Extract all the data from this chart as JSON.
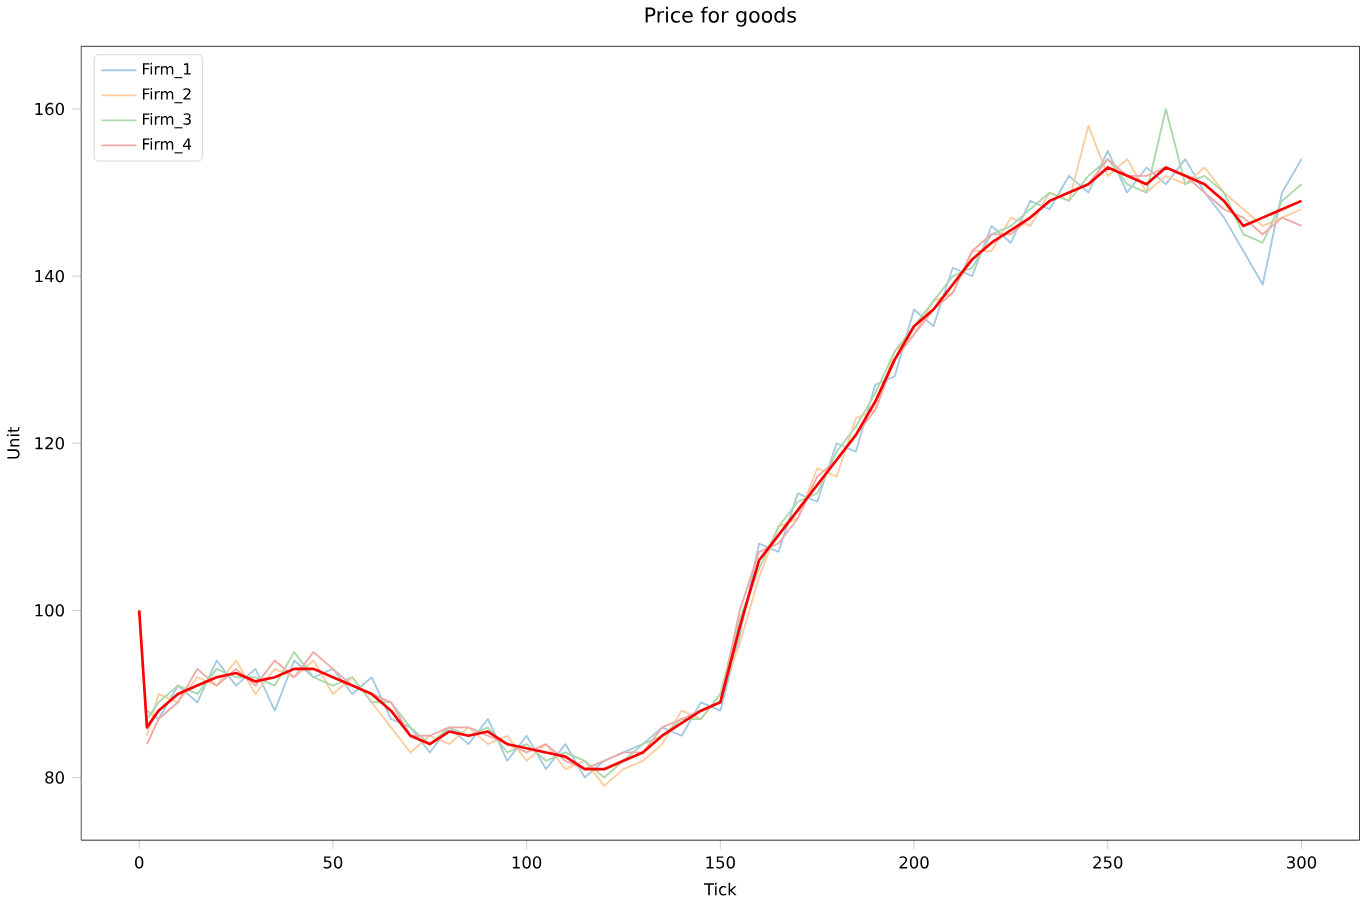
{
  "chart_data": {
    "type": "line",
    "title": "Price for goods",
    "xlabel": "Tick",
    "ylabel": "Unit",
    "x": [
      0,
      2,
      5,
      10,
      15,
      20,
      25,
      30,
      35,
      40,
      45,
      50,
      55,
      60,
      65,
      70,
      75,
      80,
      85,
      90,
      95,
      100,
      105,
      110,
      115,
      120,
      125,
      130,
      135,
      140,
      145,
      150,
      155,
      160,
      165,
      170,
      175,
      180,
      185,
      190,
      195,
      200,
      205,
      210,
      215,
      220,
      225,
      230,
      235,
      240,
      245,
      250,
      255,
      260,
      265,
      270,
      275,
      280,
      285,
      290,
      295,
      300
    ],
    "xlim": [
      -15,
      315
    ],
    "ylim": [
      72.5,
      167.5
    ],
    "xticks": [
      0,
      50,
      100,
      150,
      200,
      250,
      300
    ],
    "yticks": [
      80,
      100,
      120,
      140,
      160
    ],
    "legend": "top left",
    "marker": "none",
    "series": [
      {
        "name": "Firm_1",
        "color": "#a5c9e1",
        "values": [
          null,
          88,
          87,
          91,
          89,
          94,
          91,
          93,
          88,
          94,
          92,
          93,
          90,
          92,
          87,
          86,
          83,
          86,
          84,
          87,
          82,
          85,
          81,
          84,
          80,
          82,
          83,
          84,
          86,
          85,
          89,
          88,
          97,
          108,
          107,
          114,
          113,
          120,
          119,
          127,
          128,
          136,
          134,
          141,
          140,
          146,
          144,
          149,
          148,
          152,
          150,
          155,
          150,
          153,
          151,
          154,
          150,
          147,
          143,
          139,
          150,
          154
        ]
      },
      {
        "name": "Firm_2",
        "color": "#ffcc9f",
        "values": [
          null,
          85,
          90,
          89,
          92,
          91,
          94,
          90,
          93,
          92,
          94,
          90,
          92,
          89,
          86,
          83,
          85,
          84,
          86,
          84,
          85,
          82,
          84,
          81,
          82,
          79,
          81,
          82,
          84,
          88,
          87,
          90,
          96,
          104,
          110,
          111,
          117,
          116,
          123,
          124,
          131,
          133,
          137,
          138,
          143,
          143,
          147,
          146,
          150,
          149,
          158,
          152,
          154,
          150,
          152,
          151,
          153,
          150,
          148,
          146,
          147,
          148
        ]
      },
      {
        "name": "Firm_3",
        "color": "#abd9ab",
        "values": [
          null,
          87,
          89,
          91,
          90,
          93,
          92,
          92,
          91,
          95,
          92,
          91,
          92,
          89,
          89,
          86,
          84,
          86,
          85,
          86,
          83,
          84,
          82,
          83,
          82,
          80,
          82,
          84,
          85,
          87,
          87,
          90,
          99,
          105,
          110,
          113,
          114,
          119,
          122,
          126,
          131,
          134,
          137,
          140,
          141,
          145,
          146,
          148,
          150,
          149,
          152,
          154,
          151,
          150,
          160,
          151,
          152,
          150,
          145,
          144,
          149,
          151
        ]
      },
      {
        "name": "Firm_4",
        "color": "#efa9a9",
        "values": [
          null,
          84,
          87,
          89,
          93,
          91,
          93,
          91,
          94,
          92,
          95,
          93,
          91,
          90,
          89,
          85,
          85,
          86,
          86,
          85,
          84,
          83,
          84,
          82,
          81,
          82,
          83,
          83,
          86,
          87,
          88,
          89,
          100,
          107,
          108,
          111,
          116,
          118,
          121,
          124,
          130,
          133,
          136,
          138,
          143,
          145,
          145,
          147,
          149,
          150,
          151,
          154,
          152,
          152,
          153,
          152,
          150,
          148,
          147,
          145,
          147,
          146
        ]
      },
      {
        "color": "#ff0000",
        "values": [
          100,
          86,
          88,
          90,
          91,
          92,
          92.5,
          91.5,
          92,
          93,
          93,
          92,
          91,
          90,
          88,
          85,
          84,
          85.5,
          85,
          85.5,
          84,
          83.5,
          83,
          82.5,
          81,
          81,
          82,
          83,
          85,
          86.5,
          88,
          89,
          98,
          106,
          109,
          112,
          115,
          118,
          121,
          125,
          130,
          134,
          136,
          139,
          142,
          144,
          145.5,
          147,
          149,
          150,
          151,
          153,
          152,
          151,
          153,
          152,
          151,
          149,
          146,
          147,
          148,
          149
        ]
      }
    ]
  }
}
